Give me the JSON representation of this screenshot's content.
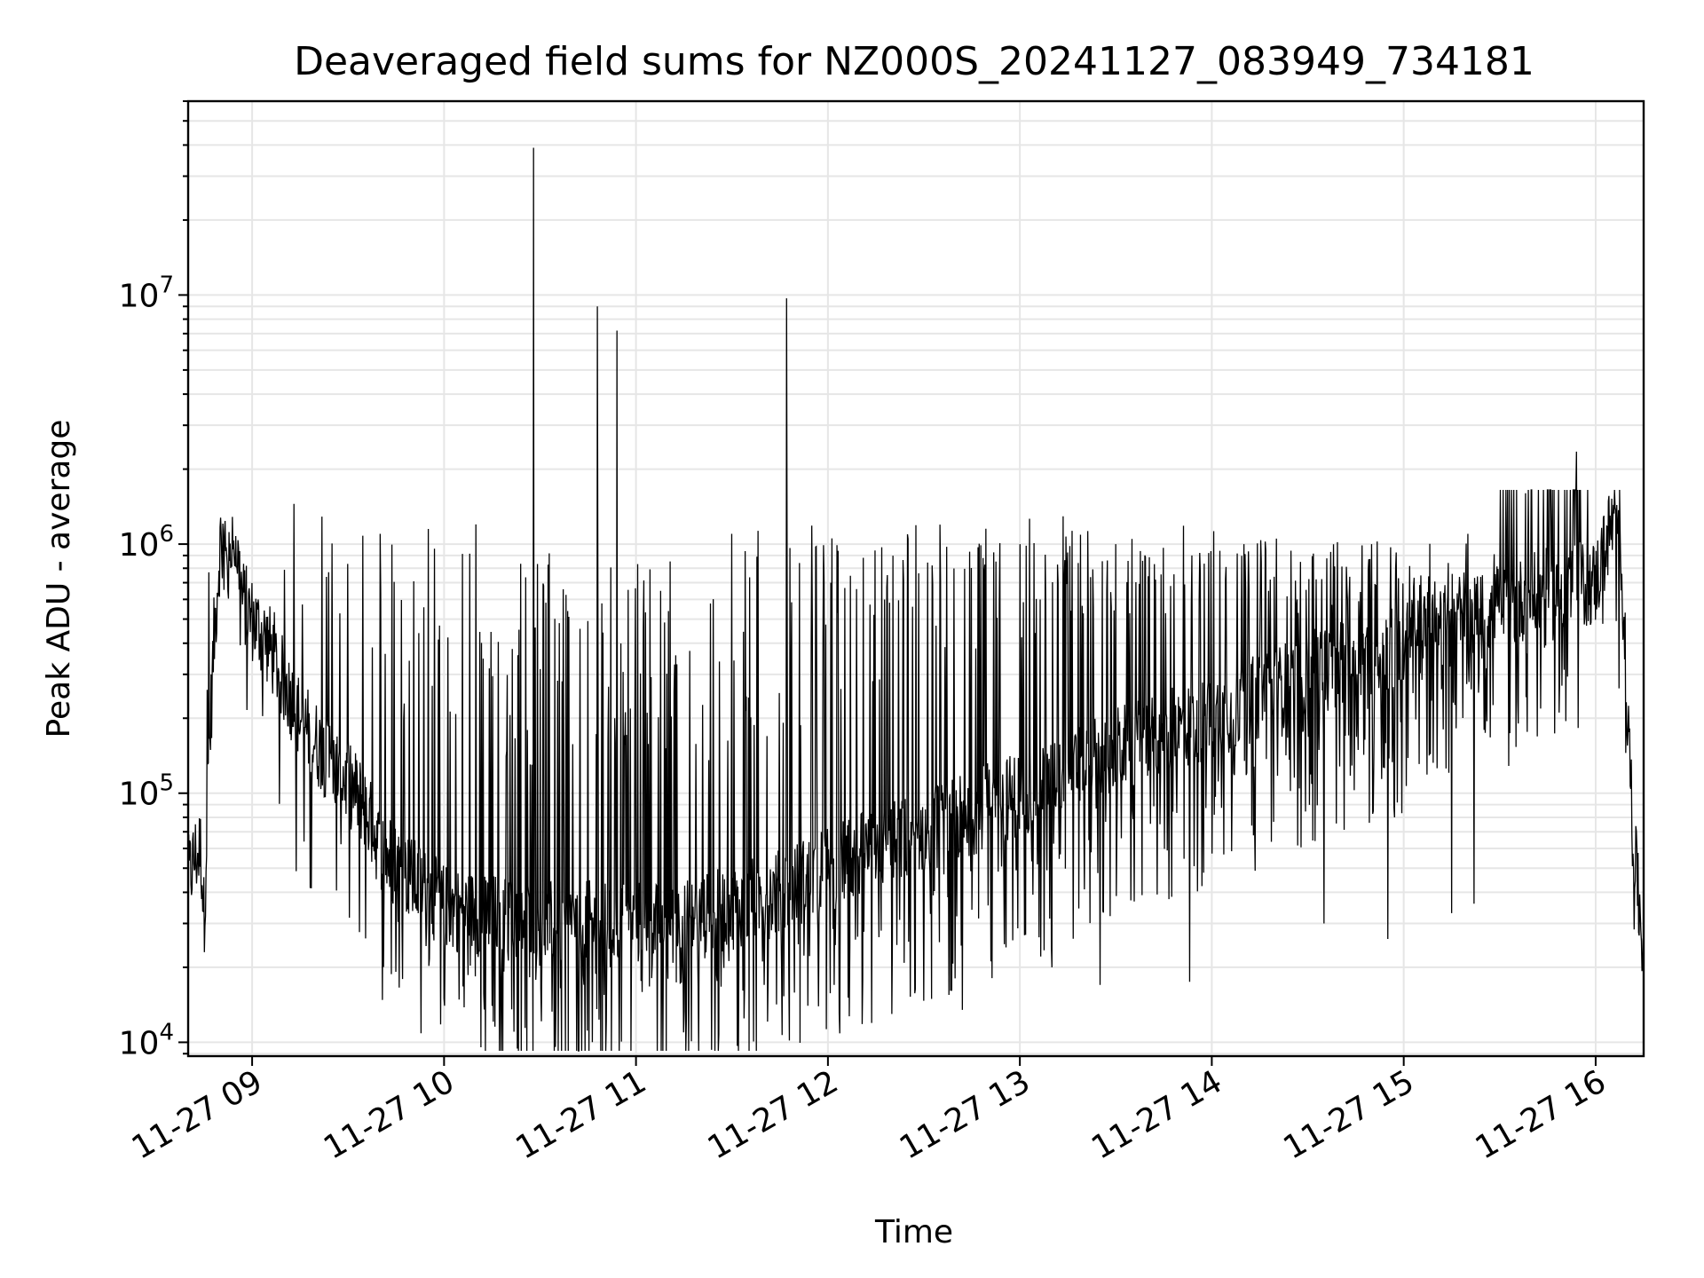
{
  "chart_data": {
    "type": "line",
    "title": "Deaveraged field sums for NZ000S_20241127_083949_734181",
    "xlabel": "Time",
    "ylabel": "Peak ADU - average",
    "x_scale": "time",
    "y_scale": "log",
    "xlim": [
      "2024-11-27 08:40",
      "2024-11-27 16:15"
    ],
    "ylim": [
      8800,
      60000000
    ],
    "grid": true,
    "x_tick_labels": [
      "11-27 09",
      "11-27 10",
      "11-27 11",
      "11-27 12",
      "11-27 13",
      "11-27 14",
      "11-27 15",
      "11-27 16"
    ],
    "y_tick_labels": [
      {
        "base": "10",
        "exp": "4"
      },
      {
        "base": "10",
        "exp": "5"
      },
      {
        "base": "10",
        "exp": "6"
      },
      {
        "base": "10",
        "exp": "7"
      }
    ],
    "series_color": "#000000",
    "series": [
      {
        "points": [
          [
            "08:40",
            45000
          ],
          [
            "08:42",
            55000
          ],
          [
            "08:44",
            60000
          ],
          [
            "08:45",
            30000
          ],
          [
            "08:46",
            90000
          ],
          [
            "08:48",
            400000
          ],
          [
            "08:50",
            1000000
          ],
          [
            "08:53",
            1150000
          ],
          [
            "08:55",
            1000000
          ],
          [
            "08:57",
            600000
          ],
          [
            "09:00",
            500000
          ],
          [
            "09:05",
            400000
          ],
          [
            "09:10",
            280000
          ],
          [
            "09:15",
            200000
          ],
          [
            "09:20",
            160000
          ],
          [
            "09:25",
            130000
          ],
          [
            "09:30",
            110000
          ],
          [
            "09:35",
            90000
          ],
          [
            "09:40",
            60000
          ],
          [
            "09:50",
            45000
          ],
          [
            "10:00",
            35000
          ],
          [
            "10:15",
            32000
          ],
          [
            "10:30",
            30000
          ],
          [
            "10:45",
            30000
          ],
          [
            "11:00",
            30000
          ],
          [
            "11:15",
            30000
          ],
          [
            "11:30",
            35000
          ],
          [
            "11:45",
            40000
          ],
          [
            "12:00",
            50000
          ],
          [
            "12:30",
            70000
          ],
          [
            "13:00",
            100000
          ],
          [
            "13:30",
            150000
          ],
          [
            "14:00",
            200000
          ],
          [
            "14:30",
            300000
          ],
          [
            "15:00",
            400000
          ],
          [
            "15:30",
            550000
          ],
          [
            "15:45",
            650000
          ],
          [
            "16:00",
            700000
          ],
          [
            "16:05",
            1200000
          ],
          [
            "16:08",
            900000
          ],
          [
            "16:10",
            200000
          ],
          [
            "16:12",
            60000
          ],
          [
            "16:15",
            22000
          ]
        ],
        "spikes": [
          [
            "08:46",
            260000
          ],
          [
            "09:13",
            1450000
          ],
          [
            "09:40",
            1100000
          ],
          [
            "09:55",
            1150000
          ],
          [
            "10:10",
            1200000
          ],
          [
            "10:28",
            39000000
          ],
          [
            "10:48",
            9000000
          ],
          [
            "10:54",
            7200000
          ],
          [
            "11:30",
            1100000
          ],
          [
            "11:47",
            9700000
          ],
          [
            "12:25",
            1050000
          ],
          [
            "13:00",
            1000000
          ],
          [
            "13:30",
            1000000
          ],
          [
            "14:10",
            1000000
          ],
          [
            "14:50",
            1000000
          ],
          [
            "15:20",
            1100000
          ],
          [
            "15:38",
            1600000
          ],
          [
            "15:54",
            2350000
          ]
        ],
        "dips": [
          [
            "08:45",
            23000
          ],
          [
            "10:00",
            15000
          ],
          [
            "10:15",
            14000
          ],
          [
            "10:35",
            14000
          ],
          [
            "10:52",
            20000
          ],
          [
            "11:10",
            18000
          ],
          [
            "11:40",
            17000
          ],
          [
            "12:02",
            17000
          ],
          [
            "12:20",
            13000
          ],
          [
            "12:42",
            13500
          ],
          [
            "13:10",
            20000
          ],
          [
            "13:25",
            17000
          ],
          [
            "13:53",
            17500
          ],
          [
            "14:35",
            30000
          ],
          [
            "14:55",
            26000
          ],
          [
            "15:15",
            33000
          ],
          [
            "15:22",
            36000
          ]
        ]
      }
    ]
  }
}
